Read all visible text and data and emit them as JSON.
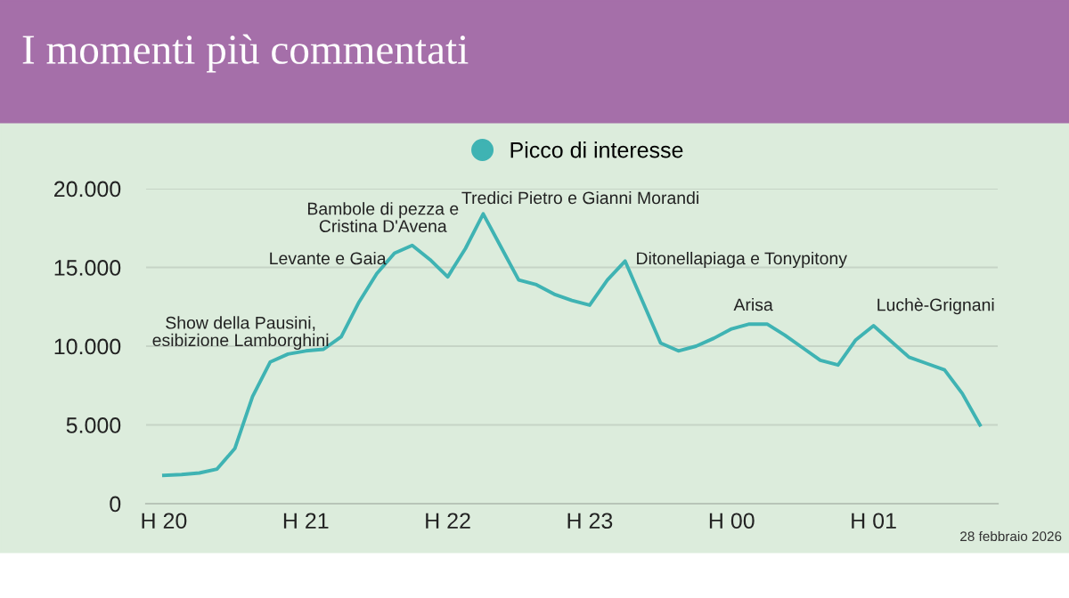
{
  "chart_data": {
    "type": "line",
    "title": "I momenti più commentati",
    "categories": [
      "H 20",
      null,
      null,
      null,
      null,
      null,
      null,
      null,
      "H 21",
      null,
      null,
      null,
      null,
      null,
      null,
      null,
      "H 22",
      null,
      null,
      null,
      null,
      null,
      null,
      null,
      "H 23",
      null,
      null,
      null,
      null,
      null,
      null,
      null,
      "H 00",
      null,
      null,
      null,
      null,
      null,
      null,
      null,
      "H 01",
      null,
      null,
      null,
      null,
      null,
      null
    ],
    "series": [
      {
        "name": "Picco di interesse",
        "color": "#3fb3b3",
        "values": [
          1800,
          1850,
          1950,
          2200,
          3500,
          6800,
          9000,
          9500,
          9700,
          9800,
          10600,
          12800,
          14600,
          15900,
          16400,
          15500,
          14400,
          16200,
          18400,
          16300,
          14200,
          13900,
          13300,
          12900,
          12600,
          14200,
          15400,
          12800,
          10200,
          9700,
          10000,
          10500,
          11100,
          11400,
          11400,
          10700,
          9900,
          9100,
          8800,
          10400,
          11300,
          10300,
          9300,
          8900,
          8500,
          7000,
          5000
        ]
      }
    ],
    "ylim": [
      0,
      20000
    ],
    "yticks": [
      0,
      {
        "value": 5000,
        "label": "5.000"
      },
      {
        "value": 10000,
        "label": "10.000"
      },
      {
        "value": 15000,
        "label": "15.000"
      },
      {
        "value": 20000,
        "label": "20.000"
      }
    ],
    "grid": "y",
    "legend": "top",
    "marker": "none",
    "line_style": "solid",
    "annotations": [
      "Show della Pausini,\nesibizione Lamborghini",
      "Levante e Gaia",
      "Bambole di pezza e\nCristina D'Avena",
      "Tredici Pietro e Gianni Morandi",
      "Ditonellapiaga e Tonypitony",
      "Arisa",
      "Luchè-Grignani",
      "28 febbraio 2026"
    ]
  }
}
